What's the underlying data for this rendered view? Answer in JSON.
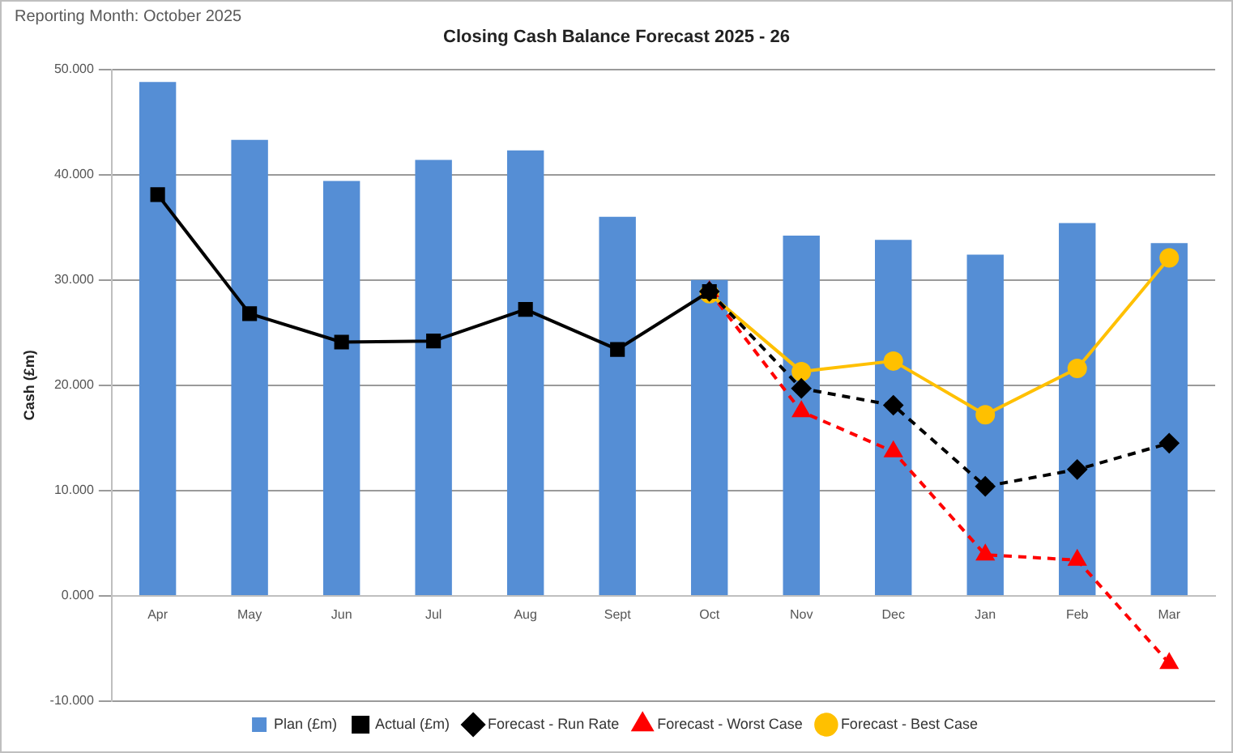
{
  "chart_data": {
    "type": "bar",
    "title": "Closing Cash Balance Forecast 2025 - 26",
    "ylabel": "Cash (£m)",
    "categories": [
      "Apr",
      "May",
      "Jun",
      "Jul",
      "Aug",
      "Sept",
      "Oct",
      "Nov",
      "Dec",
      "Jan",
      "Feb",
      "Mar"
    ],
    "series": [
      {
        "name": "Plan (£m)",
        "color": "#558ed5",
        "values": [
          48.8,
          43.3,
          39.4,
          41.4,
          42.3,
          36.0,
          30.0,
          34.2,
          33.8,
          32.4,
          35.4,
          33.5
        ]
      },
      {
        "name": "Actual (£m)",
        "type": "line",
        "color": "#000000",
        "marker": "square",
        "line_style": "solid",
        "values": [
          38.1,
          26.8,
          24.1,
          24.2,
          27.2,
          23.4,
          28.9,
          null,
          null,
          null,
          null,
          null
        ]
      },
      {
        "name": "Forecast - Run Rate",
        "type": "line",
        "color": "#000000",
        "marker": "diamond",
        "line_style": "dashed",
        "values": [
          null,
          null,
          null,
          null,
          null,
          null,
          28.9,
          19.7,
          18.1,
          10.4,
          12.0,
          14.5
        ]
      },
      {
        "name": "Forecast - Worst Case",
        "type": "line",
        "color": "#ff0000",
        "marker": "triangle",
        "line_style": "dashed",
        "values": [
          null,
          null,
          null,
          null,
          null,
          null,
          28.9,
          17.5,
          13.7,
          3.9,
          3.4,
          -6.4
        ]
      },
      {
        "name": "Forecast - Best Case",
        "type": "line",
        "color": "#ffc000",
        "marker": "circle",
        "line_style": "solid",
        "values": [
          null,
          null,
          null,
          null,
          null,
          null,
          28.7,
          21.3,
          22.3,
          17.2,
          21.6,
          32.1
        ]
      }
    ],
    "ylim": [
      -10,
      50
    ],
    "yticks": [
      {
        "value": -10,
        "label": "-10.000"
      },
      {
        "value": 0,
        "label": "0.000"
      },
      {
        "value": 10,
        "label": "10.000"
      },
      {
        "value": 20,
        "label": "20.000"
      },
      {
        "value": 30,
        "label": "30.000"
      },
      {
        "value": 40,
        "label": "40.000"
      },
      {
        "value": 50,
        "label": "50.000"
      }
    ],
    "grid": "y",
    "legend": "bottom",
    "annotations": [
      "Reporting Month: October 2025"
    ]
  }
}
